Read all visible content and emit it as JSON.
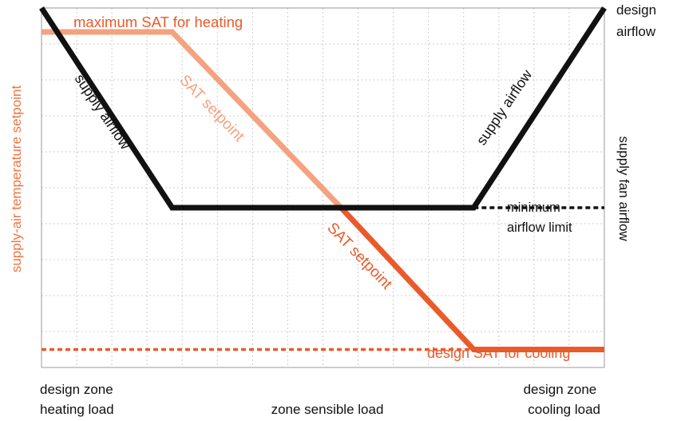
{
  "colors": {
    "airflow": "#111111",
    "sat_heating": "#f4a27f",
    "sat_cooling": "#ea5a2a",
    "sat_axis_label": "#ef7442",
    "grid": "#cccccc",
    "frame": "#999999"
  },
  "chart_data": {
    "type": "line",
    "grid": true,
    "x_domain": [
      0,
      14
    ],
    "y_domain": [
      0,
      9
    ],
    "xlabel": "zone sensible load",
    "x_left_label": [
      "design zone",
      "heating load"
    ],
    "x_right_label": [
      "design zone",
      "cooling load"
    ],
    "ylabel_left": "supply-air temperature setpoint",
    "ylabel_right": "supply fan airflow",
    "right_top_label": [
      "design",
      "airflow"
    ],
    "series": [
      {
        "key": "supply_airflow",
        "color": "airflow",
        "style": "solid",
        "points": [
          [
            0,
            9
          ],
          [
            3.25,
            4
          ],
          [
            10.75,
            4
          ],
          [
            14,
            9
          ]
        ]
      },
      {
        "key": "minimum_airflow_limit",
        "color": "airflow",
        "style": "dashed",
        "points": [
          [
            10.75,
            4
          ],
          [
            14,
            4
          ]
        ]
      },
      {
        "key": "sat_setpoint_heating_part",
        "color": "sat_heating",
        "style": "solid",
        "points": [
          [
            0,
            8.4
          ],
          [
            3.25,
            8.4
          ],
          [
            7.45,
            4
          ]
        ]
      },
      {
        "key": "sat_setpoint_cooling_part",
        "color": "sat_cooling",
        "style": "solid",
        "points": [
          [
            7.45,
            4
          ],
          [
            10.75,
            0.45
          ],
          [
            14,
            0.45
          ]
        ]
      },
      {
        "key": "design_sat_for_cooling_dashed",
        "color": "sat_cooling",
        "style": "dashed",
        "points": [
          [
            0,
            0.45
          ],
          [
            10.75,
            0.45
          ]
        ]
      }
    ],
    "annotations": [
      {
        "key": "max_sat",
        "text": "maximum SAT for heating",
        "color": "sat_cooling"
      },
      {
        "key": "supply_airflow_left",
        "text": "supply airflow",
        "color": "airflow"
      },
      {
        "key": "supply_airflow_right",
        "text": "supply airflow",
        "color": "airflow"
      },
      {
        "key": "sat_setpoint_upper",
        "text": "SAT setpoint",
        "color": "sat_heating"
      },
      {
        "key": "sat_setpoint_lower",
        "text": "SAT setpoint",
        "color": "sat_cooling"
      },
      {
        "key": "min_airflow",
        "text": [
          "minimum",
          "airflow limit"
        ],
        "color": "airflow"
      },
      {
        "key": "design_sat_cooling",
        "text": "design SAT for cooling",
        "color": "sat_cooling"
      }
    ]
  }
}
